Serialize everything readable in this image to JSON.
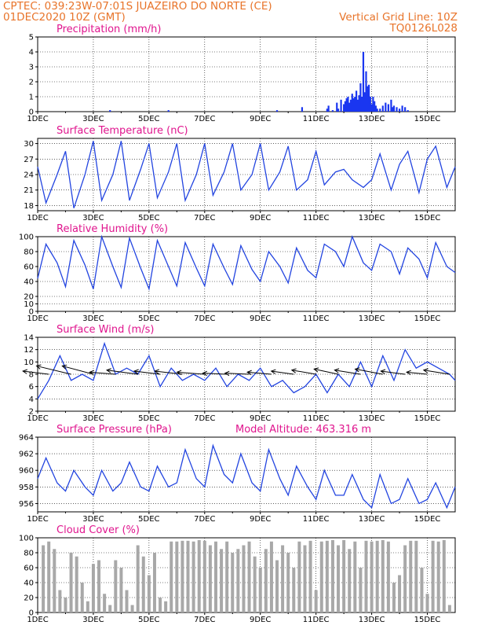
{
  "header": {
    "line1": "CPTEC:   039:23W-07:01S   JUAZEIRO DO NORTE (CE)",
    "line2_left": "01DEC2020 10Z (GMT)",
    "line2_right": "Vertical Grid Line: 10Z",
    "line3_right": "TQ0126L028"
  },
  "x_ticks": [
    "1DEC",
    "3DEC",
    "5DEC",
    "7DEC",
    "9DEC",
    "11DEC",
    "13DEC",
    "15DEC"
  ],
  "colors": {
    "line": "#2244e0",
    "bar": "#1a36f0",
    "cloud": "#a8a8a8",
    "title": "#e0158e",
    "header": "#e8742a"
  },
  "chart_data": [
    {
      "type": "bar",
      "title": "Precipitation (mm/h)",
      "ylim": [
        0,
        5
      ],
      "yticks": [
        0,
        1,
        2,
        3,
        4,
        5
      ],
      "x_range_days": [
        0,
        15
      ],
      "x": [
        2.6,
        4.7,
        8.6,
        9.5,
        10.4,
        10.45,
        10.6,
        10.75,
        10.8,
        10.9,
        11.0,
        11.05,
        11.1,
        11.15,
        11.2,
        11.25,
        11.3,
        11.35,
        11.4,
        11.45,
        11.5,
        11.55,
        11.6,
        11.65,
        11.7,
        11.75,
        11.8,
        11.85,
        11.9,
        11.95,
        12.0,
        12.05,
        12.1,
        12.15,
        12.2,
        12.3,
        12.4,
        12.5,
        12.6,
        12.7,
        12.75,
        12.8,
        12.9,
        13.0,
        13.1,
        13.2,
        13.3
      ],
      "values": [
        0.1,
        0.1,
        0.1,
        0.3,
        0.2,
        0.4,
        0.1,
        0.6,
        0.2,
        0.8,
        0.5,
        0.7,
        0.9,
        1.0,
        0.6,
        0.8,
        1.2,
        0.9,
        1.0,
        1.4,
        0.8,
        1.1,
        1.9,
        1.0,
        4.0,
        1.3,
        2.7,
        1.7,
        1.8,
        1.0,
        0.5,
        1.0,
        0.7,
        0.4,
        0.2,
        0.2,
        0.4,
        0.6,
        0.5,
        0.8,
        0.3,
        0.4,
        0.3,
        0.2,
        0.4,
        0.3,
        0.1
      ]
    },
    {
      "type": "line",
      "title": "Surface Temperature (nC)",
      "ylim": [
        17,
        31
      ],
      "yticks": [
        18,
        21,
        24,
        27,
        30
      ],
      "x": [
        0,
        0.3,
        0.7,
        1.0,
        1.3,
        1.7,
        2.0,
        2.3,
        2.7,
        3.0,
        3.3,
        3.7,
        4.0,
        4.3,
        4.7,
        5.0,
        5.3,
        5.7,
        6.0,
        6.3,
        6.7,
        7.0,
        7.3,
        7.7,
        8.0,
        8.3,
        8.7,
        9.0,
        9.3,
        9.7,
        10.0,
        10.3,
        10.7,
        11.0,
        11.3,
        11.7,
        12.0,
        12.3,
        12.7,
        13.0,
        13.3,
        13.7,
        14.0,
        14.3,
        14.7,
        15.0
      ],
      "values": [
        25.5,
        18.5,
        24,
        28.5,
        17.5,
        24,
        30.5,
        19,
        24,
        30.5,
        19,
        25,
        30,
        19.5,
        24.5,
        30,
        19,
        24,
        30,
        20,
        24.5,
        30,
        21,
        24,
        30,
        21,
        24.5,
        29.5,
        21,
        23,
        28.5,
        22,
        24.5,
        25,
        23,
        21.5,
        23,
        28,
        21,
        26,
        28.5,
        20.5,
        27,
        29.5,
        21.5,
        25.5
      ]
    },
    {
      "type": "line",
      "title": "Relative Humidity (%)",
      "ylim": [
        0,
        100
      ],
      "yticks": [
        0,
        10,
        20,
        40,
        60,
        80,
        100
      ],
      "x": [
        0,
        0.3,
        0.7,
        1.0,
        1.3,
        1.7,
        2.0,
        2.3,
        2.7,
        3.0,
        3.3,
        3.7,
        4.0,
        4.3,
        4.7,
        5.0,
        5.3,
        5.7,
        6.0,
        6.3,
        6.7,
        7.0,
        7.3,
        7.7,
        8.0,
        8.3,
        8.7,
        9.0,
        9.3,
        9.7,
        10.0,
        10.3,
        10.7,
        11.0,
        11.3,
        11.7,
        12.0,
        12.3,
        12.7,
        13.0,
        13.3,
        13.7,
        14.0,
        14.3,
        14.7,
        15.0
      ],
      "values": [
        44,
        90,
        65,
        33,
        95,
        62,
        30,
        100,
        60,
        32,
        98,
        58,
        30,
        95,
        60,
        34,
        92,
        58,
        34,
        90,
        58,
        36,
        88,
        56,
        40,
        80,
        60,
        38,
        85,
        55,
        45,
        90,
        80,
        60,
        100,
        65,
        55,
        90,
        80,
        50,
        85,
        70,
        45,
        92,
        60,
        52
      ]
    },
    {
      "type": "line",
      "title": "Surface Wind (m/s)",
      "ylim": [
        2,
        14
      ],
      "yticks": [
        2,
        4,
        6,
        8,
        10,
        12,
        14
      ],
      "x": [
        0,
        0.4,
        0.8,
        1.2,
        1.6,
        2.0,
        2.4,
        2.8,
        3.2,
        3.6,
        4.0,
        4.4,
        4.8,
        5.2,
        5.6,
        6.0,
        6.4,
        6.8,
        7.2,
        7.6,
        8.0,
        8.4,
        8.8,
        9.2,
        9.6,
        10.0,
        10.4,
        10.8,
        11.2,
        11.6,
        12.0,
        12.4,
        12.8,
        13.2,
        13.6,
        14.0,
        14.4,
        14.8,
        15.0
      ],
      "values": [
        4,
        7,
        11,
        7,
        8,
        7,
        13,
        8,
        9,
        8,
        11,
        6,
        9,
        7,
        8,
        7,
        9,
        6,
        8,
        7,
        9,
        6,
        7,
        5,
        6,
        8,
        5,
        8,
        6,
        10,
        6,
        11,
        7,
        12,
        9,
        10,
        9,
        8,
        7
      ],
      "vector_x": [
        0.4,
        1.2,
        2.0,
        2.8,
        3.6,
        4.4,
        5.2,
        6.0,
        6.8,
        7.6,
        8.4,
        9.2,
        10.0,
        10.8,
        11.6,
        12.4,
        13.2,
        14.0,
        14.8
      ],
      "vector_u": [
        -1.5,
        -2.0,
        -1.8,
        -1.5,
        -1.8,
        -1.5,
        -1.6,
        -1.6,
        -1.4,
        -1.4,
        -1.4,
        -1.3,
        -1.4,
        -1.4,
        -1.5,
        -1.6,
        -1.4,
        -1.2,
        -1.5
      ],
      "vector_v": [
        0.3,
        0.8,
        0.8,
        0.2,
        0.4,
        0.3,
        0.3,
        0.2,
        0.1,
        0.1,
        0.2,
        0.3,
        0.4,
        0.5,
        0.4,
        0.5,
        0.3,
        0.2,
        0.4
      ]
    },
    {
      "type": "line",
      "title": "Surface Pressure (hPa)",
      "subtitle": "Model Altitude: 463.316  m",
      "ylim": [
        955,
        964
      ],
      "yticks": [
        956,
        958,
        960,
        962,
        964
      ],
      "x": [
        0,
        0.3,
        0.7,
        1.0,
        1.3,
        1.7,
        2.0,
        2.3,
        2.7,
        3.0,
        3.3,
        3.7,
        4.0,
        4.3,
        4.7,
        5.0,
        5.3,
        5.7,
        6.0,
        6.3,
        6.7,
        7.0,
        7.3,
        7.7,
        8.0,
        8.3,
        8.7,
        9.0,
        9.3,
        9.7,
        10.0,
        10.3,
        10.7,
        11.0,
        11.3,
        11.7,
        12.0,
        12.3,
        12.7,
        13.0,
        13.3,
        13.7,
        14.0,
        14.3,
        14.7,
        15.0
      ],
      "values": [
        959,
        961.5,
        958.5,
        957.5,
        960,
        958,
        957,
        960,
        957.5,
        958.5,
        961,
        958,
        957.5,
        960.5,
        958,
        958.5,
        962.5,
        959,
        958,
        963,
        959.5,
        958.5,
        962,
        958.5,
        957.5,
        962.5,
        959,
        957,
        960.5,
        958,
        956.5,
        960,
        957,
        957,
        959.5,
        956.5,
        955.5,
        959.5,
        956,
        956.5,
        959,
        956,
        956.5,
        958.5,
        955.5,
        958
      ]
    },
    {
      "type": "bar",
      "title": "Cloud Cover (%)",
      "ylim": [
        0,
        100
      ],
      "yticks": [
        0,
        20,
        40,
        60,
        80,
        100
      ],
      "x": [
        0.2,
        0.4,
        0.6,
        0.8,
        1.0,
        1.2,
        1.4,
        1.6,
        1.8,
        2.0,
        2.2,
        2.4,
        2.6,
        2.8,
        3.0,
        3.2,
        3.4,
        3.6,
        3.8,
        4.0,
        4.2,
        4.4,
        4.6,
        4.8,
        5.0,
        5.2,
        5.4,
        5.6,
        5.8,
        6.0,
        6.2,
        6.4,
        6.6,
        6.8,
        7.0,
        7.2,
        7.4,
        7.6,
        7.8,
        8.0,
        8.2,
        8.4,
        8.6,
        8.8,
        9.0,
        9.2,
        9.4,
        9.6,
        9.8,
        10.0,
        10.2,
        10.4,
        10.6,
        10.8,
        11.0,
        11.2,
        11.4,
        11.6,
        11.8,
        12.0,
        12.2,
        12.4,
        12.6,
        12.8,
        13.0,
        13.2,
        13.4,
        13.6,
        13.8,
        14.0,
        14.2,
        14.4,
        14.6,
        14.8
      ],
      "values": [
        90,
        95,
        85,
        30,
        20,
        80,
        75,
        40,
        15,
        65,
        70,
        25,
        10,
        70,
        60,
        30,
        10,
        90,
        75,
        50,
        80,
        20,
        15,
        95,
        95,
        96,
        96,
        95,
        97,
        96,
        90,
        95,
        85,
        95,
        80,
        85,
        90,
        95,
        75,
        60,
        85,
        95,
        70,
        90,
        80,
        60,
        95,
        90,
        96,
        30,
        95,
        96,
        97,
        90,
        97,
        85,
        95,
        60,
        96,
        95,
        96,
        97,
        95,
        40,
        50,
        90,
        96,
        96,
        60,
        25,
        96,
        95,
        97,
        10
      ]
    }
  ]
}
